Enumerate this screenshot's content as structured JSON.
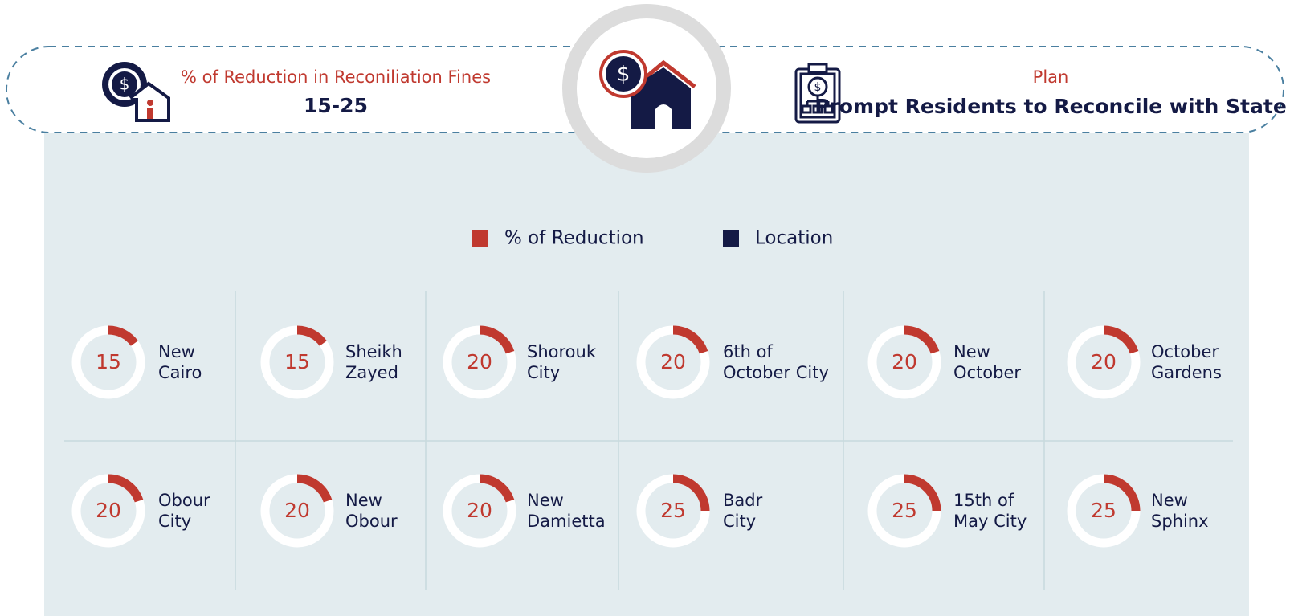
{
  "header": {
    "left_label": "% of Reduction in Reconiliation Fines",
    "left_value": "15-25",
    "right_label": "Plan",
    "right_value": "Prompt Residents to Reconcile with State"
  },
  "legend": [
    "% of Reduction",
    "Location"
  ],
  "items": [
    {
      "value": 15,
      "location": [
        "New",
        "Cairo"
      ]
    },
    {
      "value": 15,
      "location": [
        "Sheikh",
        "Zayed"
      ]
    },
    {
      "value": 20,
      "location": [
        "Shorouk",
        "City"
      ]
    },
    {
      "value": 20,
      "location": [
        "6th of",
        "October City"
      ]
    },
    {
      "value": 20,
      "location": [
        "New",
        "October"
      ]
    },
    {
      "value": 20,
      "location": [
        "October",
        "Gardens"
      ]
    },
    {
      "value": 20,
      "location": [
        "Obour",
        "City"
      ]
    },
    {
      "value": 20,
      "location": [
        "New",
        "Obour"
      ]
    },
    {
      "value": 20,
      "location": [
        "New",
        "Damietta"
      ]
    },
    {
      "value": 25,
      "location": [
        "Badr",
        "City"
      ]
    },
    {
      "value": 25,
      "location": [
        "15th of",
        "May City"
      ]
    },
    {
      "value": 25,
      "location": [
        "New",
        "Sphinx"
      ]
    }
  ]
}
